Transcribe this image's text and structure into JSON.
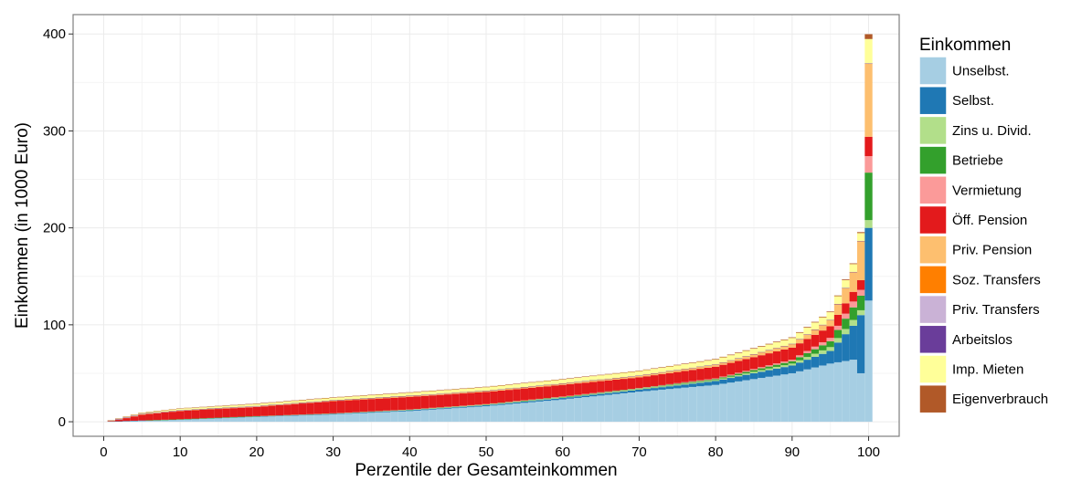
{
  "chart_data": {
    "type": "bar",
    "stacked": true,
    "xlabel": "Perzentile der Gesamteinkommen",
    "ylabel": "Einkommen (in 1000 Euro)",
    "xlim": [
      -4,
      104
    ],
    "ylim": [
      -15,
      420
    ],
    "xticks": [
      0,
      10,
      20,
      30,
      40,
      50,
      60,
      70,
      80,
      90,
      100
    ],
    "yticks": [
      0,
      100,
      200,
      300,
      400
    ],
    "grid": true,
    "legend_position": "right",
    "legend_title": "Einkommen",
    "series": [
      {
        "name": "Unselbst.",
        "color": "#a6cee3"
      },
      {
        "name": "Selbst.",
        "color": "#1f78b4"
      },
      {
        "name": "Zins u. Divid.",
        "color": "#b2df8a"
      },
      {
        "name": "Betriebe",
        "color": "#33a02c"
      },
      {
        "name": "Vermietung",
        "color": "#fb9a99"
      },
      {
        "name": "Öff. Pension",
        "color": "#e31a1c"
      },
      {
        "name": "Priv. Pension",
        "color": "#fdbf6f"
      },
      {
        "name": "Soz. Transfers",
        "color": "#ff7f00"
      },
      {
        "name": "Priv. Transfers",
        "color": "#cab2d6"
      },
      {
        "name": "Arbeitslos",
        "color": "#6a3d9a"
      },
      {
        "name": "Imp. Mieten",
        "color": "#ffff99"
      },
      {
        "name": "Eigenverbrauch",
        "color": "#b15928"
      }
    ],
    "percentile_breakdown": [
      {
        "percentile": 1,
        "values": [
          0.2,
          0.0,
          0.0,
          0.0,
          0.0,
          0.3,
          0.0,
          0.2,
          0.0,
          0.3,
          0.3,
          0.2
        ]
      },
      {
        "percentile": 5,
        "values": [
          1.0,
          0.3,
          0.0,
          0.0,
          0.0,
          6.0,
          0.3,
          0.3,
          0.1,
          0.3,
          0.8,
          0.3
        ]
      },
      {
        "percentile": 10,
        "values": [
          2.0,
          0.4,
          0.1,
          0.1,
          0.0,
          8.5,
          0.3,
          0.3,
          0.1,
          0.2,
          1.5,
          0.4
        ]
      },
      {
        "percentile": 20,
        "values": [
          5.0,
          0.5,
          0.2,
          0.1,
          0.0,
          9.5,
          0.5,
          0.2,
          0.1,
          0.2,
          2.0,
          0.5
        ]
      },
      {
        "percentile": 30,
        "values": [
          7.5,
          0.6,
          0.3,
          0.2,
          0.1,
          12.5,
          0.6,
          0.2,
          0.1,
          0.1,
          2.5,
          0.5
        ]
      },
      {
        "percentile": 40,
        "values": [
          11.0,
          0.8,
          0.4,
          0.3,
          0.2,
          13.0,
          0.8,
          0.2,
          0.1,
          0.1,
          3.0,
          0.5
        ]
      },
      {
        "percentile": 50,
        "values": [
          16.0,
          1.0,
          0.5,
          0.4,
          0.3,
          12.5,
          1.0,
          0.2,
          0.1,
          0.1,
          3.5,
          0.5
        ]
      },
      {
        "percentile": 60,
        "values": [
          23.0,
          1.5,
          0.6,
          0.5,
          0.4,
          12.0,
          1.2,
          0.2,
          0.1,
          0.1,
          4.0,
          0.5
        ]
      },
      {
        "percentile": 70,
        "values": [
          31.0,
          2.0,
          0.7,
          0.6,
          0.5,
          11.0,
          1.5,
          0.2,
          0.1,
          0.1,
          4.5,
          0.5
        ]
      },
      {
        "percentile": 80,
        "values": [
          38.0,
          4.0,
          1.0,
          1.0,
          0.8,
          12.0,
          2.0,
          0.2,
          0.1,
          0.1,
          5.0,
          0.6
        ]
      },
      {
        "percentile": 90,
        "values": [
          50.0,
          8.0,
          2.0,
          2.5,
          1.5,
          12.5,
          3.5,
          0.2,
          0.1,
          0.1,
          6.0,
          0.7
        ]
      },
      {
        "percentile": 95,
        "values": [
          60.0,
          13.0,
          4.0,
          6.0,
          3.5,
          12.0,
          6.0,
          0.3,
          0.1,
          0.1,
          8.0,
          0.7
        ]
      },
      {
        "percentile": 98,
        "values": [
          64.0,
          35.0,
          6.0,
          13.0,
          6.0,
          10.0,
          20.0,
          0.3,
          0.2,
          0.1,
          8.0,
          0.8
        ]
      },
      {
        "percentile": 99,
        "values": [
          50.0,
          60.0,
          5.0,
          15.0,
          6.0,
          10.0,
          40.0,
          0.3,
          0.2,
          0.1,
          8.0,
          1.0
        ]
      },
      {
        "percentile": 100,
        "values": [
          125.0,
          75.0,
          8.0,
          49.0,
          17.0,
          20.0,
          75.0,
          0.5,
          0.2,
          0.1,
          25.0,
          5.0
        ]
      }
    ]
  }
}
